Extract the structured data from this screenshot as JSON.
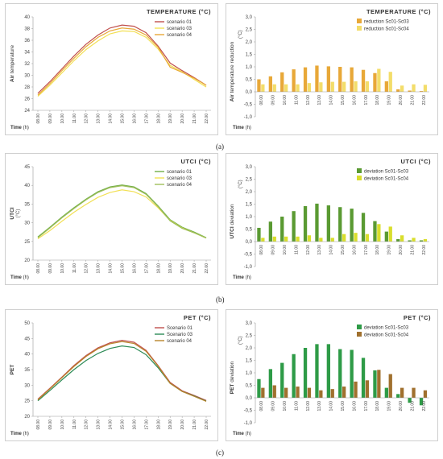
{
  "hours": [
    "08.00",
    "09.00",
    "10.00",
    "11.00",
    "12.00",
    "13.00",
    "14.00",
    "15.00",
    "16.00",
    "17.00",
    "18.00",
    "19.00",
    "20.00",
    "21.00",
    "22.00"
  ],
  "labels": {
    "a": "(a)",
    "b": "(b)",
    "c": "(c)"
  },
  "chart_data": [
    {
      "type": "line",
      "title": "TEMPERATURE (°C)",
      "xlabel": "Time (h)",
      "ylabel": "Air temperature",
      "ylim": [
        24,
        40
      ],
      "yticks": [
        24,
        26,
        28,
        30,
        32,
        34,
        36,
        38,
        40
      ],
      "series": [
        {
          "name": "scenario 01",
          "color": "#c0504d",
          "values": [
            26.9,
            28.9,
            31.1,
            33.3,
            35.3,
            36.9,
            38.1,
            38.6,
            38.4,
            37.3,
            35.0,
            32.1,
            30.8,
            29.6,
            28.3
          ]
        },
        {
          "name": "scenario 03",
          "color": "#f2e055",
          "values": [
            26.4,
            28.3,
            30.4,
            32.5,
            34.4,
            35.9,
            37.1,
            37.6,
            37.5,
            36.5,
            34.5,
            31.7,
            30.6,
            29.3,
            28.0
          ]
        },
        {
          "name": "scenario 04",
          "color": "#e8a838",
          "values": [
            26.6,
            28.6,
            30.8,
            32.9,
            34.9,
            36.5,
            37.6,
            38.1,
            37.9,
            36.9,
            34.8,
            31.4,
            30.5,
            29.5,
            28.3
          ]
        }
      ]
    },
    {
      "type": "bar",
      "title": "TEMPERATURE (°C)",
      "xlabel": "Time (h)",
      "ylabel": "Air temperature reduction",
      "ylabel_unit": "(°C)",
      "ylim": [
        -1.0,
        3.0
      ],
      "yticks": [
        "3,0",
        "2,5",
        "2,0",
        "1,5",
        "1,0",
        "0,5",
        "0,0",
        "-0,5",
        "-1,0"
      ],
      "series": [
        {
          "name": "reduction Sc01-Sc03",
          "color": "#e8a838",
          "values": [
            0.5,
            0.62,
            0.78,
            0.9,
            0.98,
            1.05,
            1.02,
            1.0,
            0.98,
            0.88,
            0.75,
            0.42,
            0.1,
            0.05,
            0.03
          ]
        },
        {
          "name": "reduction Sc01-Sc04",
          "color": "#f3dd6a",
          "values": [
            0.3,
            0.3,
            0.3,
            0.3,
            0.35,
            0.38,
            0.4,
            0.4,
            0.42,
            0.42,
            0.92,
            0.8,
            0.25,
            0.3,
            0.28
          ]
        }
      ]
    },
    {
      "type": "line",
      "title": "UTCI (°C)",
      "xlabel": "Time (h)",
      "ylabel": "UTCI",
      "ylabel_unit": "(°C)",
      "ylim": [
        20,
        45
      ],
      "yticks": [
        20,
        25,
        30,
        35,
        40,
        45
      ],
      "series": [
        {
          "name": "scenario 01",
          "color": "#70ad47",
          "values": [
            26.2,
            28.8,
            31.5,
            34.0,
            36.3,
            38.3,
            39.6,
            40.1,
            39.6,
            37.8,
            34.5,
            30.8,
            28.8,
            27.5,
            26.0
          ]
        },
        {
          "name": "scenario 03",
          "color": "#f2e055",
          "values": [
            25.7,
            27.9,
            30.4,
            32.8,
            34.9,
            36.8,
            38.1,
            38.8,
            38.3,
            36.9,
            34.0,
            30.6,
            28.6,
            27.3,
            25.9
          ]
        },
        {
          "name": "scenario 04",
          "color": "#9fbf5a",
          "values": [
            26.0,
            28.6,
            31.3,
            33.8,
            36.1,
            38.1,
            39.4,
            39.9,
            39.4,
            37.6,
            34.3,
            30.5,
            28.5,
            27.3,
            25.9
          ]
        }
      ]
    },
    {
      "type": "bar",
      "title": "UTCI (°C)",
      "xlabel": "Time (h)",
      "ylabel": "UTCI deviation",
      "ylabel_unit": "(°C)",
      "ylim": [
        -1.0,
        3.0
      ],
      "yticks": [
        "3,0",
        "2,5",
        "2,0",
        "1,5",
        "1,0",
        "0,5",
        "0,0",
        "-0,5",
        "-1,0"
      ],
      "series": [
        {
          "name": "deviation Sc01-Sc03",
          "color": "#5a9a32",
          "values": [
            0.55,
            0.8,
            1.0,
            1.22,
            1.42,
            1.52,
            1.45,
            1.38,
            1.32,
            1.15,
            0.82,
            0.4,
            0.1,
            0.05,
            0.05
          ]
        },
        {
          "name": "deviation Sc01-Sc04",
          "color": "#d9de2c",
          "values": [
            0.15,
            0.2,
            0.2,
            0.2,
            0.25,
            0.15,
            0.15,
            0.3,
            0.35,
            0.3,
            0.7,
            0.6,
            0.25,
            0.15,
            0.1
          ]
        }
      ]
    },
    {
      "type": "line",
      "title": "PET (°C)",
      "xlabel": "Time (h)",
      "ylabel": "PET",
      "ylim": [
        20,
        50
      ],
      "yticks": [
        20,
        25,
        30,
        35,
        40,
        45,
        50
      ],
      "series": [
        {
          "name": "Scenario 01",
          "color": "#c0504d",
          "values": [
            25.5,
            29.0,
            32.6,
            36.3,
            39.5,
            42.0,
            43.6,
            44.4,
            43.8,
            41.2,
            36.3,
            30.9,
            28.2,
            26.7,
            25.1
          ]
        },
        {
          "name": "Scenario 03",
          "color": "#2e8b57",
          "values": [
            25.0,
            28.3,
            31.7,
            35.0,
            37.9,
            40.2,
            41.8,
            42.6,
            42.1,
            39.8,
            35.6,
            30.6,
            28.0,
            26.5,
            24.9
          ]
        },
        {
          "name": "scenario 04",
          "color": "#b8862b",
          "values": [
            25.3,
            28.8,
            32.4,
            36.0,
            39.2,
            41.7,
            43.3,
            44.0,
            43.4,
            40.9,
            36.1,
            30.6,
            28.0,
            26.4,
            24.8
          ]
        }
      ]
    },
    {
      "type": "bar",
      "title": "PET (°C)",
      "xlabel": "Time (h)",
      "ylabel": "PET deviation",
      "ylabel_unit": "(°C)",
      "ylim": [
        -1.0,
        3.0
      ],
      "yticks": [
        "3,0",
        "2,5",
        "2,0",
        "1,5",
        "1,0",
        "0,5",
        "0,0",
        "-0,5",
        "-1,0"
      ],
      "series": [
        {
          "name": "deviation Sc01-Sc03",
          "color": "#2e9b47",
          "values": [
            0.75,
            1.15,
            1.4,
            1.75,
            2.0,
            2.15,
            2.15,
            1.95,
            1.92,
            1.6,
            1.1,
            0.4,
            0.15,
            -0.2,
            -0.3
          ]
        },
        {
          "name": "deviation Sc01-Sc04",
          "color": "#a0702e",
          "values": [
            0.4,
            0.5,
            0.4,
            0.45,
            0.4,
            0.3,
            0.35,
            0.45,
            0.65,
            0.7,
            1.12,
            0.95,
            0.4,
            0.4,
            0.3
          ]
        }
      ]
    }
  ]
}
